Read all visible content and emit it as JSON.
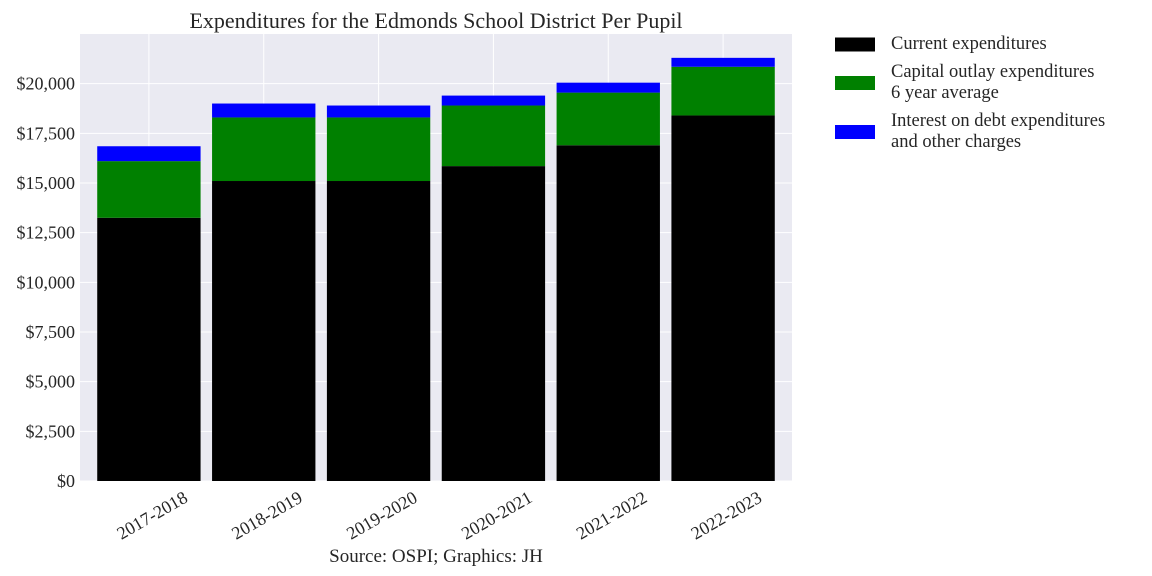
{
  "chart_data": {
    "type": "bar",
    "stacked": true,
    "title": "Expenditures for the Edmonds School District Per Pupil",
    "caption": "Source: OSPI; Graphics: JH",
    "xlabel": "",
    "ylabel": "",
    "categories": [
      "2017-2018",
      "2018-2019",
      "2019-2020",
      "2020-2021",
      "2021-2022",
      "2022-2023"
    ],
    "ylim": [
      0,
      22500
    ],
    "yticks": [
      0,
      2500,
      5000,
      7500,
      10000,
      12500,
      15000,
      17500,
      20000
    ],
    "ytick_labels": [
      "$0",
      "$2,500",
      "$5,000",
      "$7,500",
      "$10,000",
      "$12,500",
      "$15,000",
      "$17,500",
      "$20,000"
    ],
    "grid": true,
    "legend_position": "outside-top-right",
    "series": [
      {
        "name": "Current expenditures",
        "color": "#000000",
        "values": [
          13250,
          15100,
          15100,
          15850,
          16900,
          18400
        ]
      },
      {
        "name": "Capital outlay expenditures\n6 year average",
        "color": "#008000",
        "values": [
          2850,
          3200,
          3200,
          3050,
          2650,
          2450
        ]
      },
      {
        "name": "Interest on debt expenditures\nand other charges",
        "color": "#0000ff",
        "values": [
          750,
          700,
          600,
          500,
          500,
          450
        ]
      }
    ]
  }
}
